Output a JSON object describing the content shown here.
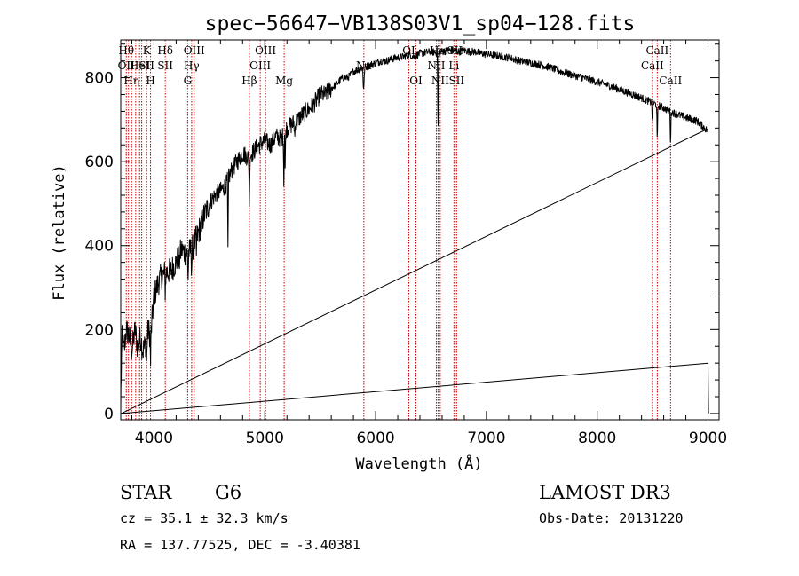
{
  "colors": {
    "axis": "#000000",
    "spectrum": "#000000",
    "line_marker": "#cc0000",
    "background": "#ffffff"
  },
  "chart_data": {
    "type": "line",
    "title": "spec−56647−VB138S03V1_sp04−128.fits",
    "xlabel": "Wavelength (Å)",
    "ylabel": "Flux (relative)",
    "xlim": [
      3700,
      9100
    ],
    "ylim": [
      -15,
      890
    ],
    "xticks": [
      4000,
      5000,
      6000,
      7000,
      8000,
      9000
    ],
    "yticks": [
      0,
      200,
      400,
      600,
      800
    ],
    "series": [
      {
        "name": "spectrum",
        "anchors": [
          [
            3700,
            20
          ],
          [
            3710,
            180
          ],
          [
            3730,
            150
          ],
          [
            3750,
            200
          ],
          [
            3780,
            180
          ],
          [
            3800,
            150
          ],
          [
            3830,
            200
          ],
          [
            3850,
            160
          ],
          [
            3880,
            180
          ],
          [
            3900,
            150
          ],
          [
            3930,
            170
          ],
          [
            3950,
            200
          ],
          [
            3970,
            180
          ],
          [
            4000,
            280
          ],
          [
            4050,
            320
          ],
          [
            4100,
            335
          ],
          [
            4150,
            340
          ],
          [
            4200,
            360
          ],
          [
            4250,
            390
          ],
          [
            4300,
            380
          ],
          [
            4350,
            395
          ],
          [
            4400,
            430
          ],
          [
            4450,
            470
          ],
          [
            4500,
            500
          ],
          [
            4550,
            520
          ],
          [
            4600,
            530
          ],
          [
            4650,
            545
          ],
          [
            4700,
            580
          ],
          [
            4750,
            600
          ],
          [
            4800,
            620
          ],
          [
            4850,
            610
          ],
          [
            4900,
            625
          ],
          [
            4950,
            640
          ],
          [
            5000,
            650
          ],
          [
            5050,
            640
          ],
          [
            5100,
            660
          ],
          [
            5150,
            655
          ],
          [
            5200,
            680
          ],
          [
            5250,
            690
          ],
          [
            5300,
            700
          ],
          [
            5350,
            715
          ],
          [
            5400,
            725
          ],
          [
            5450,
            740
          ],
          [
            5500,
            760
          ],
          [
            5550,
            760
          ],
          [
            5600,
            775
          ],
          [
            5650,
            785
          ],
          [
            5700,
            800
          ],
          [
            5750,
            800
          ],
          [
            5800,
            815
          ],
          [
            5850,
            820
          ],
          [
            5900,
            825
          ],
          [
            5950,
            830
          ],
          [
            6000,
            835
          ],
          [
            6050,
            840
          ],
          [
            6100,
            840
          ],
          [
            6150,
            845
          ],
          [
            6200,
            848
          ],
          [
            6250,
            850
          ],
          [
            6300,
            855
          ],
          [
            6350,
            850
          ],
          [
            6400,
            858
          ],
          [
            6450,
            860
          ],
          [
            6500,
            862
          ],
          [
            6550,
            860
          ],
          [
            6600,
            862
          ],
          [
            6650,
            865
          ],
          [
            6700,
            865
          ],
          [
            6750,
            862
          ],
          [
            6800,
            865
          ],
          [
            6850,
            862
          ],
          [
            6900,
            862
          ],
          [
            6950,
            858
          ],
          [
            7000,
            856
          ],
          [
            7100,
            852
          ],
          [
            7200,
            848
          ],
          [
            7300,
            840
          ],
          [
            7400,
            835
          ],
          [
            7500,
            830
          ],
          [
            7600,
            822
          ],
          [
            7700,
            812
          ],
          [
            7800,
            805
          ],
          [
            7900,
            798
          ],
          [
            8000,
            790
          ],
          [
            8100,
            782
          ],
          [
            8200,
            772
          ],
          [
            8300,
            762
          ],
          [
            8400,
            752
          ],
          [
            8500,
            740
          ],
          [
            8600,
            728
          ],
          [
            8700,
            715
          ],
          [
            8800,
            705
          ],
          [
            8900,
            697
          ],
          [
            8990,
            675
          ]
        ],
        "absorption_dips": [
          [
            3934,
            60
          ],
          [
            3969,
            60
          ],
          [
            4102,
            50
          ],
          [
            4227,
            30
          ],
          [
            4308,
            60
          ],
          [
            4340,
            50
          ],
          [
            4383,
            40
          ],
          [
            4668,
            170
          ],
          [
            4861,
            130
          ],
          [
            5172,
            120
          ],
          [
            5184,
            90
          ],
          [
            5270,
            40
          ],
          [
            5890,
            50
          ],
          [
            5896,
            40
          ],
          [
            6563,
            210
          ],
          [
            8498,
            50
          ],
          [
            8542,
            100
          ],
          [
            8662,
            80
          ]
        ],
        "edge_points": [
          [
            3705,
            0
          ],
          [
            9000,
            120
          ],
          [
            9005,
            0
          ]
        ]
      }
    ],
    "line_markers": [
      {
        "wavelength": 3750,
        "labels": [
          {
            "text": "Hθ",
            "row": 0
          },
          {
            "text": "OII",
            "row": 1
          }
        ]
      },
      {
        "wavelength": 3770,
        "labels": []
      },
      {
        "wavelength": 3798,
        "labels": [
          {
            "text": "Hη",
            "row": 2
          }
        ]
      },
      {
        "wavelength": 3835,
        "labels": []
      },
      {
        "wavelength": 3870,
        "labels": [
          {
            "text": "HeI",
            "row": 1
          }
        ]
      },
      {
        "wavelength": 3889,
        "labels": []
      },
      {
        "wavelength": 3934,
        "labels": [
          {
            "text": "K",
            "row": 0
          },
          {
            "text": "SII",
            "row": 1
          }
        ]
      },
      {
        "wavelength": 3969,
        "labels": [
          {
            "text": "H",
            "row": 2
          }
        ]
      },
      {
        "wavelength": 4102,
        "labels": [
          {
            "text": "Hδ",
            "row": 0
          },
          {
            "text": "SII",
            "row": 1
          }
        ]
      },
      {
        "wavelength": 4304,
        "labels": [
          {
            "text": "G",
            "row": 2
          }
        ]
      },
      {
        "wavelength": 4340,
        "labels": [
          {
            "text": "Hγ",
            "row": 1
          }
        ]
      },
      {
        "wavelength": 4363,
        "labels": [
          {
            "text": "OIII",
            "row": 0
          }
        ]
      },
      {
        "wavelength": 4861,
        "labels": [
          {
            "text": "Hβ",
            "row": 2
          }
        ]
      },
      {
        "wavelength": 4959,
        "labels": [
          {
            "text": "OIII",
            "row": 1
          }
        ]
      },
      {
        "wavelength": 5007,
        "labels": [
          {
            "text": "OIII",
            "row": 0
          }
        ]
      },
      {
        "wavelength": 5175,
        "labels": [
          {
            "text": "Mg",
            "row": 2
          }
        ]
      },
      {
        "wavelength": 5894,
        "labels": [
          {
            "text": "Na",
            "row": 1
          }
        ]
      },
      {
        "wavelength": 6300,
        "labels": [
          {
            "text": "OI",
            "row": 0
          }
        ]
      },
      {
        "wavelength": 6364,
        "labels": [
          {
            "text": "OI",
            "row": 2
          }
        ]
      },
      {
        "wavelength": 6548,
        "labels": [
          {
            "text": "NII",
            "row": 1
          }
        ]
      },
      {
        "wavelength": 6563,
        "labels": [
          {
            "text": "Hα",
            "row": 0
          }
        ]
      },
      {
        "wavelength": 6583,
        "labels": [
          {
            "text": "NII",
            "row": 2
          }
        ]
      },
      {
        "wavelength": 6707,
        "labels": [
          {
            "text": "Li",
            "row": 1
          }
        ]
      },
      {
        "wavelength": 6716,
        "labels": [
          {
            "text": "SII",
            "row": 0
          }
        ]
      },
      {
        "wavelength": 6731,
        "labels": [
          {
            "text": "SII",
            "row": 2
          }
        ]
      },
      {
        "wavelength": 8498,
        "labels": [
          {
            "text": "CaII",
            "row": 1
          }
        ]
      },
      {
        "wavelength": 8542,
        "labels": [
          {
            "text": "CaII",
            "row": 0
          }
        ]
      },
      {
        "wavelength": 8662,
        "labels": [
          {
            "text": "CaII",
            "row": 2
          }
        ]
      }
    ]
  },
  "info": {
    "object_class": "STAR",
    "subclass": "G6",
    "survey": "LAMOST DR3",
    "redshift": "cz = 35.1 ± 32.3 km/s",
    "obs_date": "Obs-Date: 20131220",
    "coords": "RA = 137.77525, DEC =  -3.40381"
  }
}
